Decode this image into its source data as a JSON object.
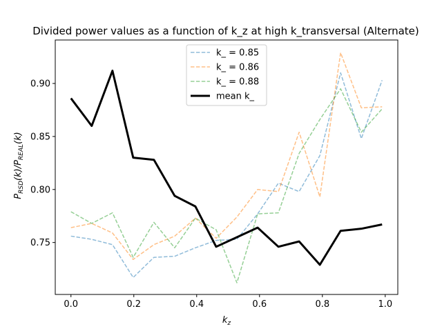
{
  "chart_data": {
    "type": "line",
    "title": "Divided power values as a function of k_z at high k_transversal (Alternate)",
    "xlabel": "k_z",
    "ylabel": "P_RSD(k)/P_REAL(k)",
    "xlim": [
      -0.05,
      1.04
    ],
    "ylim": [
      0.701,
      0.941
    ],
    "xticks": [
      0.0,
      0.2,
      0.4,
      0.6,
      0.8,
      1.0
    ],
    "xtick_labels": [
      "0.0",
      "0.2",
      "0.4",
      "0.6",
      "0.8",
      "1.0"
    ],
    "yticks": [
      0.75,
      0.8,
      0.85,
      0.9
    ],
    "ytick_labels": [
      "0.75",
      "0.80",
      "0.85",
      "0.90"
    ],
    "grid": false,
    "legend_position": "top-center",
    "x": [
      0.0,
      0.066,
      0.132,
      0.198,
      0.264,
      0.33,
      0.396,
      0.462,
      0.528,
      0.594,
      0.66,
      0.726,
      0.792,
      0.858,
      0.924,
      0.99
    ],
    "series": [
      {
        "name": "k_ = 0.85",
        "style": "dashed",
        "color": "#1f77b4",
        "values": [
          0.756,
          0.753,
          0.748,
          0.717,
          0.736,
          0.737,
          0.745,
          0.752,
          0.753,
          0.777,
          0.806,
          0.798,
          0.832,
          0.91,
          0.848,
          0.903
        ]
      },
      {
        "name": "k_ = 0.86",
        "style": "dashed",
        "color": "#ff7f0e",
        "values": [
          0.764,
          0.768,
          0.759,
          0.734,
          0.748,
          0.756,
          0.773,
          0.754,
          0.774,
          0.8,
          0.798,
          0.854,
          0.793,
          0.929,
          0.877,
          0.878
        ]
      },
      {
        "name": "k_ = 0.88",
        "style": "dashed",
        "color": "#2ca02c",
        "values": [
          0.779,
          0.768,
          0.778,
          0.736,
          0.769,
          0.745,
          0.773,
          0.762,
          0.712,
          0.777,
          0.778,
          0.834,
          0.866,
          0.895,
          0.854,
          0.876
        ]
      },
      {
        "name": "mean k_",
        "style": "solid",
        "color": "#000000",
        "values": [
          0.886,
          0.86,
          0.912,
          0.83,
          0.828,
          0.794,
          0.784,
          0.746,
          0.755,
          0.764,
          0.746,
          0.751,
          0.729,
          0.761,
          0.763,
          0.767
        ]
      }
    ]
  }
}
